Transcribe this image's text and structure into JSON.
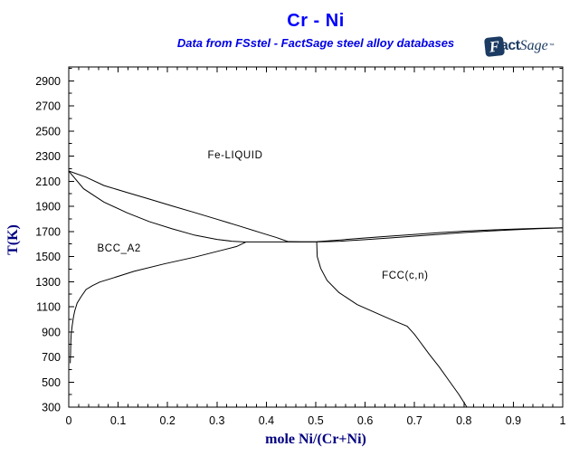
{
  "header": {
    "title": "Cr - Ni",
    "subtitle": "Data from FSstel - FactSage steel alloy databases"
  },
  "logo": {
    "f": "F",
    "act": "act",
    "sage": "Sage",
    "tm": "™",
    "color": "#1c3b63"
  },
  "chart_data": {
    "type": "line",
    "title": "Cr - Ni",
    "subtitle": "Data from FSstel - FactSage steel alloy databases",
    "xlabel": "mole Ni/(Cr+Ni)",
    "ylabel": "T(K)",
    "xlim": [
      0,
      1
    ],
    "ylim": [
      300,
      3010
    ],
    "grid": false,
    "x_major_ticks": [
      0,
      0.1,
      0.2,
      0.3,
      0.4,
      0.5,
      0.6,
      0.7,
      0.8,
      0.9,
      1
    ],
    "x_tick_labels": [
      "0",
      "0.1",
      "0.2",
      "0.3",
      "0.4",
      "0.5",
      "0.6",
      "0.7",
      "0.8",
      "0.9",
      "1"
    ],
    "x_minor_step": 0.02,
    "y_major_ticks": [
      300,
      500,
      700,
      900,
      1100,
      1300,
      1500,
      1700,
      1900,
      2100,
      2300,
      2500,
      2700,
      2900
    ],
    "y_tick_labels": [
      "300",
      "500",
      "700",
      "900",
      "1100",
      "1300",
      "1500",
      "1700",
      "1900",
      "2100",
      "2300",
      "2500",
      "2700",
      "2900"
    ],
    "y_minor_step": 100,
    "colors": {
      "curve": "#000000",
      "axis": "#000000",
      "tick_label": "#000000",
      "title": "#0000ff",
      "axis_label": "#000080",
      "annotation": "#000000"
    },
    "series": [
      {
        "name": "bcc-liquidus",
        "points": [
          [
            0,
            2181
          ],
          [
            0.035,
            2132
          ],
          [
            0.071,
            2066
          ],
          [
            0.118,
            2010
          ],
          [
            0.163,
            1958
          ],
          [
            0.21,
            1902
          ],
          [
            0.255,
            1850
          ],
          [
            0.3,
            1797
          ],
          [
            0.346,
            1742
          ],
          [
            0.39,
            1688
          ],
          [
            0.42,
            1652
          ],
          [
            0.443,
            1620
          ]
        ]
      },
      {
        "name": "bcc-solidus",
        "points": [
          [
            0,
            2181
          ],
          [
            0.03,
            2040
          ],
          [
            0.071,
            1934
          ],
          [
            0.118,
            1848
          ],
          [
            0.163,
            1778
          ],
          [
            0.21,
            1720
          ],
          [
            0.255,
            1670
          ],
          [
            0.3,
            1636
          ],
          [
            0.33,
            1622
          ],
          [
            0.358,
            1615
          ]
        ]
      },
      {
        "name": "eutectic-line",
        "points": [
          [
            0.358,
            1616
          ],
          [
            0.502,
            1616
          ]
        ]
      },
      {
        "name": "fcc-liquidus",
        "points": [
          [
            0.443,
            1619
          ],
          [
            0.47,
            1617
          ],
          [
            0.502,
            1618
          ],
          [
            0.55,
            1632
          ],
          [
            0.6,
            1648
          ],
          [
            0.65,
            1662
          ],
          [
            0.7,
            1676
          ],
          [
            0.75,
            1690
          ],
          [
            0.8,
            1702
          ],
          [
            0.85,
            1711
          ],
          [
            0.9,
            1718
          ],
          [
            0.95,
            1724
          ],
          [
            1.0,
            1729
          ]
        ]
      },
      {
        "name": "fcc-solidus",
        "points": [
          [
            0.502,
            1616
          ],
          [
            0.55,
            1622
          ],
          [
            0.6,
            1634
          ],
          [
            0.65,
            1648
          ],
          [
            0.7,
            1662
          ],
          [
            0.75,
            1677
          ],
          [
            0.8,
            1691
          ],
          [
            0.85,
            1703
          ],
          [
            0.9,
            1713
          ],
          [
            0.95,
            1722
          ],
          [
            1.0,
            1728
          ]
        ]
      },
      {
        "name": "bcc-solvus",
        "points": [
          [
            0.358,
            1614
          ],
          [
            0.34,
            1580
          ],
          [
            0.31,
            1550
          ],
          [
            0.255,
            1495
          ],
          [
            0.194,
            1442
          ],
          [
            0.132,
            1382
          ],
          [
            0.084,
            1322
          ],
          [
            0.063,
            1297
          ],
          [
            0.048,
            1268
          ],
          [
            0.035,
            1237
          ],
          [
            0.025,
            1180
          ],
          [
            0.017,
            1129
          ],
          [
            0.012,
            1065
          ],
          [
            0.0097,
            1021
          ],
          [
            0.007,
            950
          ],
          [
            0.0048,
            877
          ],
          [
            0.004,
            800
          ],
          [
            0.0037,
            733
          ],
          [
            0.003,
            650
          ]
        ]
      },
      {
        "name": "fcc-solvus",
        "points": [
          [
            0.502,
            1614
          ],
          [
            0.503,
            1500
          ],
          [
            0.51,
            1406
          ],
          [
            0.523,
            1309
          ],
          [
            0.547,
            1213
          ],
          [
            0.584,
            1117
          ],
          [
            0.639,
            1021
          ],
          [
            0.66,
            985
          ],
          [
            0.685,
            945
          ],
          [
            0.7,
            880
          ],
          [
            0.715,
            800
          ],
          [
            0.73,
            720
          ],
          [
            0.75,
            620
          ],
          [
            0.77,
            510
          ],
          [
            0.79,
            400
          ],
          [
            0.806,
            300
          ]
        ]
      }
    ],
    "annotations": [
      {
        "text": "Fe-LIQUID",
        "x": 0.337,
        "T": 2310
      },
      {
        "text": "BCC_A2",
        "x": 0.102,
        "T": 1568
      },
      {
        "text": "FCC(c,n)",
        "x": 0.681,
        "T": 1352
      }
    ]
  }
}
